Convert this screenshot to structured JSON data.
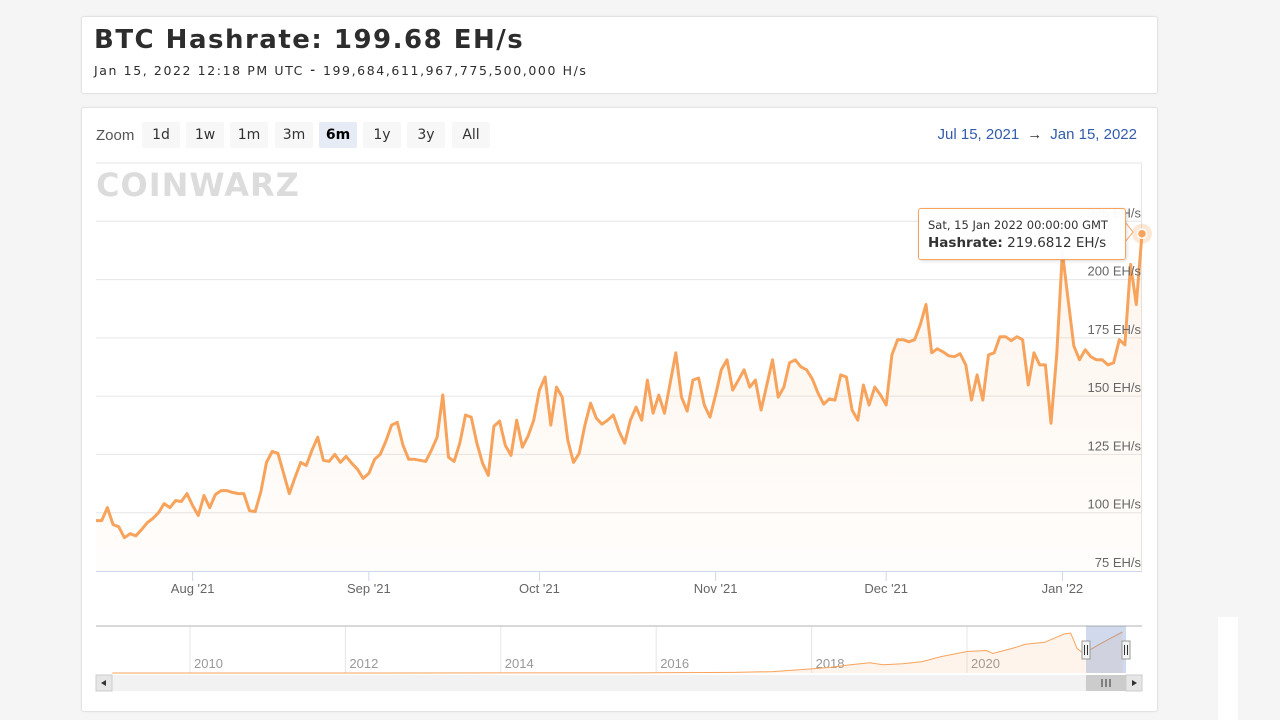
{
  "header": {
    "title": "BTC Hashrate: 199.68 EH/s",
    "subtitle": "Jan 15, 2022 12:18 PM UTC  ⁃  199,684,611,967,775,500,000 H/s"
  },
  "range_selector": {
    "label": "Zoom",
    "buttons": [
      {
        "label": "1d",
        "selected": false
      },
      {
        "label": "1w",
        "selected": false
      },
      {
        "label": "1m",
        "selected": false
      },
      {
        "label": "3m",
        "selected": false
      },
      {
        "label": "6m",
        "selected": true
      },
      {
        "label": "1y",
        "selected": false
      },
      {
        "label": "3y",
        "selected": false
      },
      {
        "label": "All",
        "selected": false
      }
    ],
    "from": "Jul 15, 2021",
    "arrow": "→",
    "to": "Jan 15, 2022"
  },
  "watermark": "COINWARZ",
  "tooltip": {
    "date": "Sat, 15 Jan 2022 00:00:00 GMT",
    "series_label": "Hashrate:",
    "value": "219.6812 EH/s"
  },
  "colors": {
    "series": "#f7a35c",
    "range_text": "#335cad",
    "selected_button": "#e6ebf5"
  },
  "chart_data": {
    "type": "area",
    "ylim": [
      75,
      250
    ],
    "xlim": [
      "2021-07-15",
      "2022-01-15"
    ],
    "grid": true,
    "y_ticks": [
      {
        "value": 75,
        "label": "75 EH/s"
      },
      {
        "value": 100,
        "label": "100 EH/s"
      },
      {
        "value": 125,
        "label": "125 EH/s"
      },
      {
        "value": 150,
        "label": "150 EH/s"
      },
      {
        "value": 175,
        "label": "175 EH/s"
      },
      {
        "value": 200,
        "label": "200 EH/s"
      },
      {
        "value": 225,
        "label": "225 EH/s"
      }
    ],
    "x_ticks": [
      {
        "date": "2021-08-01",
        "label": "Aug '21"
      },
      {
        "date": "2021-09-01",
        "label": "Sep '21"
      },
      {
        "date": "2021-10-01",
        "label": "Oct '21"
      },
      {
        "date": "2021-11-01",
        "label": "Nov '21"
      },
      {
        "date": "2021-12-01",
        "label": "Dec '21"
      },
      {
        "date": "2022-01-01",
        "label": "Jan '22"
      }
    ],
    "series": [
      {
        "name": "Hashrate",
        "unit": "EH/s",
        "points": [
          [
            "2021-07-15",
            96.6
          ],
          [
            "2021-07-16",
            96.6
          ],
          [
            "2021-07-17",
            102.2
          ],
          [
            "2021-07-18",
            94.9
          ],
          [
            "2021-07-19",
            94.0
          ],
          [
            "2021-07-20",
            89.3
          ],
          [
            "2021-07-21",
            91.0
          ],
          [
            "2021-07-22",
            90.1
          ],
          [
            "2021-07-23",
            92.7
          ],
          [
            "2021-07-24",
            95.7
          ],
          [
            "2021-07-25",
            97.5
          ],
          [
            "2021-07-26",
            100.0
          ],
          [
            "2021-07-27",
            103.9
          ],
          [
            "2021-07-28",
            102.2
          ],
          [
            "2021-07-29",
            105.2
          ],
          [
            "2021-07-30",
            104.8
          ],
          [
            "2021-07-31",
            108.2
          ],
          [
            "2021-08-01",
            103.1
          ],
          [
            "2021-08-02",
            98.8
          ],
          [
            "2021-08-03",
            107.4
          ],
          [
            "2021-08-04",
            102.2
          ],
          [
            "2021-08-05",
            107.8
          ],
          [
            "2021-08-06",
            109.5
          ],
          [
            "2021-08-07",
            109.5
          ],
          [
            "2021-08-08",
            108.7
          ],
          [
            "2021-08-09",
            108.2
          ],
          [
            "2021-08-10",
            108.2
          ],
          [
            "2021-08-11",
            100.9
          ],
          [
            "2021-08-12",
            100.5
          ],
          [
            "2021-08-13",
            109.1
          ],
          [
            "2021-08-14",
            121.6
          ],
          [
            "2021-08-15",
            126.3
          ],
          [
            "2021-08-16",
            125.5
          ],
          [
            "2021-08-17",
            116.9
          ],
          [
            "2021-08-18",
            108.2
          ],
          [
            "2021-08-19",
            115.1
          ],
          [
            "2021-08-20",
            121.6
          ],
          [
            "2021-08-21",
            120.3
          ],
          [
            "2021-08-22",
            126.8
          ],
          [
            "2021-08-23",
            132.4
          ],
          [
            "2021-08-24",
            122.5
          ],
          [
            "2021-08-25",
            122.0
          ],
          [
            "2021-08-26",
            125.0
          ],
          [
            "2021-08-27",
            121.6
          ],
          [
            "2021-08-28",
            124.2
          ],
          [
            "2021-08-29",
            121.2
          ],
          [
            "2021-08-30",
            118.6
          ],
          [
            "2021-08-31",
            114.7
          ],
          [
            "2021-09-01",
            116.9
          ],
          [
            "2021-09-02",
            122.9
          ],
          [
            "2021-09-03",
            125.0
          ],
          [
            "2021-09-04",
            130.7
          ],
          [
            "2021-09-05",
            137.6
          ],
          [
            "2021-09-06",
            138.8
          ],
          [
            "2021-09-07",
            128.9
          ],
          [
            "2021-09-08",
            122.9
          ],
          [
            "2021-09-09",
            122.9
          ],
          [
            "2021-09-10",
            122.5
          ],
          [
            "2021-09-11",
            122.0
          ],
          [
            "2021-09-12",
            126.8
          ],
          [
            "2021-09-13",
            132.4
          ],
          [
            "2021-09-14",
            150.5
          ],
          [
            "2021-09-15",
            123.8
          ],
          [
            "2021-09-16",
            122.0
          ],
          [
            "2021-09-17",
            129.8
          ],
          [
            "2021-09-18",
            141.9
          ],
          [
            "2021-09-19",
            141.0
          ],
          [
            "2021-09-20",
            129.8
          ],
          [
            "2021-09-21",
            121.2
          ],
          [
            "2021-09-22",
            116.0
          ],
          [
            "2021-09-23",
            137.1
          ],
          [
            "2021-09-24",
            139.3
          ],
          [
            "2021-09-25",
            128.9
          ],
          [
            "2021-09-26",
            124.6
          ],
          [
            "2021-09-27",
            139.7
          ],
          [
            "2021-09-28",
            128.1
          ],
          [
            "2021-09-29",
            132.8
          ],
          [
            "2021-09-30",
            139.7
          ],
          [
            "2021-10-01",
            152.6
          ],
          [
            "2021-10-02",
            158.2
          ],
          [
            "2021-10-03",
            137.6
          ],
          [
            "2021-10-04",
            153.9
          ],
          [
            "2021-10-05",
            149.6
          ],
          [
            "2021-10-06",
            131.1
          ],
          [
            "2021-10-07",
            121.6
          ],
          [
            "2021-10-08",
            125.5
          ],
          [
            "2021-10-09",
            137.6
          ],
          [
            "2021-10-10",
            147.0
          ],
          [
            "2021-10-11",
            140.6
          ],
          [
            "2021-10-12",
            138.0
          ],
          [
            "2021-10-13",
            139.7
          ],
          [
            "2021-10-14",
            141.9
          ],
          [
            "2021-10-15",
            135.0
          ],
          [
            "2021-10-16",
            129.8
          ],
          [
            "2021-10-17",
            139.7
          ],
          [
            "2021-10-18",
            145.3
          ],
          [
            "2021-10-19",
            139.7
          ],
          [
            "2021-10-20",
            156.9
          ],
          [
            "2021-10-21",
            142.7
          ],
          [
            "2021-10-22",
            150.5
          ],
          [
            "2021-10-23",
            142.7
          ],
          [
            "2021-10-24",
            155.7
          ],
          [
            "2021-10-25",
            168.6
          ],
          [
            "2021-10-26",
            149.6
          ],
          [
            "2021-10-27",
            143.6
          ],
          [
            "2021-10-28",
            156.9
          ],
          [
            "2021-10-29",
            157.8
          ],
          [
            "2021-10-30",
            146.2
          ],
          [
            "2021-10-31",
            141.0
          ],
          [
            "2021-11-01",
            150.5
          ],
          [
            "2021-11-02",
            161.3
          ],
          [
            "2021-11-03",
            165.6
          ],
          [
            "2021-11-04",
            152.6
          ],
          [
            "2021-11-05",
            156.9
          ],
          [
            "2021-11-06",
            161.3
          ],
          [
            "2021-11-07",
            153.9
          ],
          [
            "2021-11-08",
            156.9
          ],
          [
            "2021-11-09",
            144.0
          ],
          [
            "2021-11-10",
            154.8
          ],
          [
            "2021-11-11",
            165.6
          ],
          [
            "2021-11-12",
            149.6
          ],
          [
            "2021-11-13",
            153.9
          ],
          [
            "2021-11-14",
            164.3
          ],
          [
            "2021-11-15",
            165.6
          ],
          [
            "2021-11-16",
            162.6
          ],
          [
            "2021-11-17",
            161.3
          ],
          [
            "2021-11-18",
            157.4
          ],
          [
            "2021-11-19",
            151.3
          ],
          [
            "2021-11-20",
            146.6
          ],
          [
            "2021-11-21",
            148.8
          ],
          [
            "2021-11-22",
            148.3
          ],
          [
            "2021-11-23",
            159.1
          ],
          [
            "2021-11-24",
            158.2
          ],
          [
            "2021-11-25",
            144.0
          ],
          [
            "2021-11-26",
            139.7
          ],
          [
            "2021-11-27",
            154.8
          ],
          [
            "2021-11-28",
            146.2
          ],
          [
            "2021-11-29",
            153.9
          ],
          [
            "2021-11-30",
            150.5
          ],
          [
            "2021-12-01",
            146.2
          ],
          [
            "2021-12-02",
            167.7
          ],
          [
            "2021-12-03",
            174.2
          ],
          [
            "2021-12-04",
            174.2
          ],
          [
            "2021-12-05",
            173.3
          ],
          [
            "2021-12-06",
            174.2
          ],
          [
            "2021-12-07",
            180.7
          ],
          [
            "2021-12-08",
            189.3
          ],
          [
            "2021-12-09",
            168.6
          ],
          [
            "2021-12-10",
            170.3
          ],
          [
            "2021-12-11",
            169.0
          ],
          [
            "2021-12-12",
            167.3
          ],
          [
            "2021-12-13",
            166.9
          ],
          [
            "2021-12-14",
            168.2
          ],
          [
            "2021-12-15",
            163.4
          ],
          [
            "2021-12-16",
            148.3
          ],
          [
            "2021-12-17",
            159.1
          ],
          [
            "2021-12-18",
            148.3
          ],
          [
            "2021-12-19",
            167.7
          ],
          [
            "2021-12-20",
            168.6
          ],
          [
            "2021-12-21",
            175.5
          ],
          [
            "2021-12-22",
            175.5
          ],
          [
            "2021-12-23",
            173.8
          ],
          [
            "2021-12-24",
            175.5
          ],
          [
            "2021-12-25",
            174.2
          ],
          [
            "2021-12-26",
            154.8
          ],
          [
            "2021-12-27",
            168.6
          ],
          [
            "2021-12-28",
            163.4
          ],
          [
            "2021-12-29",
            163.4
          ],
          [
            "2021-12-30",
            138.4
          ],
          [
            "2021-12-31",
            167.7
          ],
          [
            "2022-01-01",
            211.7
          ],
          [
            "2022-01-02",
            191.4
          ],
          [
            "2022-01-03",
            171.6
          ],
          [
            "2022-01-04",
            165.6
          ],
          [
            "2022-01-05",
            169.9
          ],
          [
            "2022-01-06",
            166.9
          ],
          [
            "2022-01-07",
            165.6
          ],
          [
            "2022-01-08",
            165.6
          ],
          [
            "2022-01-09",
            163.4
          ],
          [
            "2022-01-10",
            164.3
          ],
          [
            "2022-01-11",
            174.2
          ],
          [
            "2022-01-12",
            172.0
          ],
          [
            "2022-01-13",
            206.5
          ],
          [
            "2022-01-14",
            189.3
          ],
          [
            "2022-01-15",
            219.68
          ]
        ]
      }
    ],
    "navigator": {
      "x_ticks": [
        "2010",
        "2012",
        "2014",
        "2016",
        "2018",
        "2020"
      ],
      "selected_range": [
        "2021-07-15",
        "2022-01-15"
      ],
      "points": [
        [
          "2009-01",
          0
        ],
        [
          "2015-01",
          0.5
        ],
        [
          "2016-01",
          1
        ],
        [
          "2017-01",
          3
        ],
        [
          "2017-07",
          7
        ],
        [
          "2018-01",
          20
        ],
        [
          "2018-04",
          28
        ],
        [
          "2018-07",
          40
        ],
        [
          "2018-10",
          50
        ],
        [
          "2018-12",
          40
        ],
        [
          "2019-03",
          45
        ],
        [
          "2019-06",
          55
        ],
        [
          "2019-09",
          80
        ],
        [
          "2020-01",
          105
        ],
        [
          "2020-04",
          110
        ],
        [
          "2020-05",
          95
        ],
        [
          "2020-08",
          120
        ],
        [
          "2020-10",
          140
        ],
        [
          "2021-01",
          150
        ],
        [
          "2021-04",
          190
        ],
        [
          "2021-05",
          195
        ],
        [
          "2021-06",
          120
        ],
        [
          "2021-07",
          95
        ],
        [
          "2021-10",
          150
        ],
        [
          "2022-01",
          200
        ]
      ]
    }
  }
}
